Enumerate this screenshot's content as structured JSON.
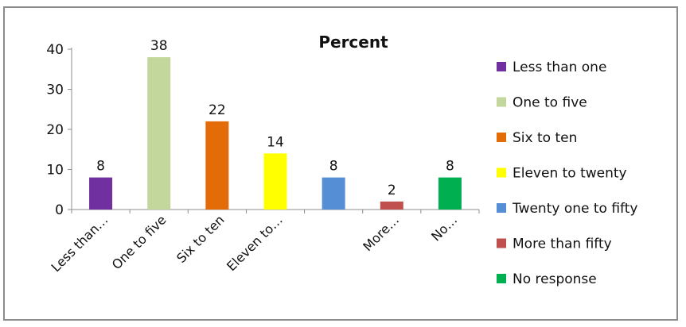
{
  "chart_data": {
    "type": "bar",
    "title": "Percent",
    "categories": [
      "Less than one",
      "One to five",
      "Six to ten",
      "Eleven to twenty",
      "Twenty one to fifty",
      "More than fifty",
      "No response"
    ],
    "tick_labels": [
      "Less than…",
      "One to five",
      "Six to ten",
      "Eleven to…",
      "",
      "More…",
      "No…"
    ],
    "values": [
      8,
      38,
      22,
      14,
      8,
      2,
      8
    ],
    "colors": [
      "#7030a0",
      "#c3d69b",
      "#e36c09",
      "#ffff00",
      "#558ed5",
      "#c0504d",
      "#00b050"
    ],
    "ylim": [
      0,
      40
    ],
    "y_ticks": [
      0,
      10,
      20,
      30,
      40
    ],
    "legend": "right",
    "grid": false
  }
}
